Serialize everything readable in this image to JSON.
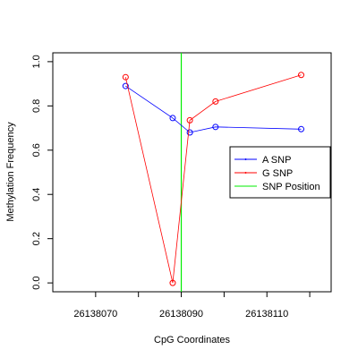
{
  "chart_data": {
    "type": "line",
    "xlabel": "CpG Coordinates",
    "ylabel": "Methylation Frequency",
    "xlim": [
      26138060,
      26138125
    ],
    "ylim": [
      -0.04,
      1.04
    ],
    "xticks": [
      26138070,
      26138080,
      26138090,
      26138100,
      26138110,
      26138120
    ],
    "xtick_labels": [
      "26138070",
      "",
      "26138090",
      "",
      "26138110",
      ""
    ],
    "yticks": [
      0.0,
      0.2,
      0.4,
      0.6,
      0.8,
      1.0
    ],
    "ytick_labels": [
      "0.0",
      "0.2",
      "0.4",
      "0.6",
      "0.8",
      "1.0"
    ],
    "series": [
      {
        "name": "A SNP",
        "color": "#0000ff",
        "x": [
          26138077,
          26138088,
          26138092,
          26138098,
          26138118
        ],
        "y": [
          0.89,
          0.745,
          0.68,
          0.705,
          0.695
        ]
      },
      {
        "name": "G SNP",
        "color": "#ff0000",
        "x": [
          26138077,
          26138088,
          26138092,
          26138098,
          26138118
        ],
        "y": [
          0.93,
          0.0,
          0.735,
          0.82,
          0.94
        ]
      }
    ],
    "snp_position": {
      "name": "SNP Position",
      "x": 26138090,
      "color": "#00ee00"
    },
    "legend_position": "right"
  }
}
